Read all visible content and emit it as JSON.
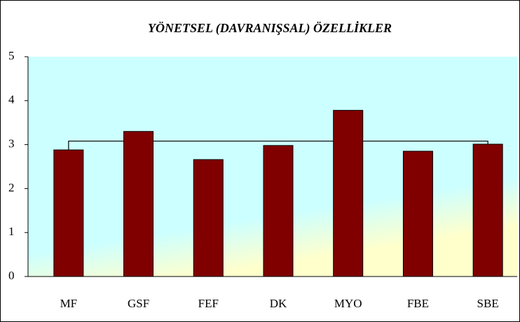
{
  "chart_data": {
    "type": "bar",
    "title": "YÖNETSEL (DAVRANIŞSAL) ÖZELLİKLER",
    "categories": [
      "MF",
      "GSF",
      "FEF",
      "DK",
      "MYO",
      "FBE",
      "SBE"
    ],
    "values": [
      2.88,
      3.3,
      2.66,
      2.98,
      3.78,
      2.85,
      3.01
    ],
    "color": "#800000",
    "reference_line": 3.08,
    "ylim": [
      0,
      5
    ],
    "yticks": [
      0,
      1,
      2,
      3,
      4,
      5
    ],
    "grid": false
  }
}
